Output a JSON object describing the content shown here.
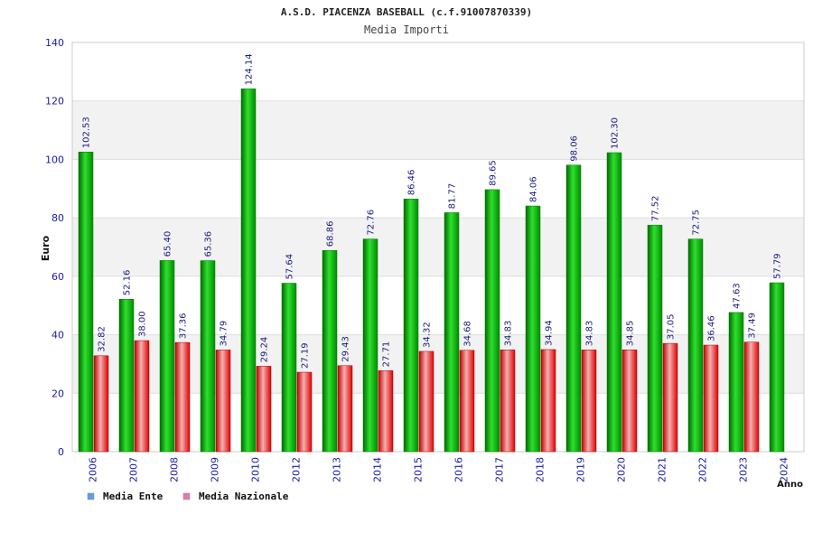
{
  "chart_data": {
    "type": "bar",
    "title": "A.S.D. PIACENZA BASEBALL (c.f.91007870339)",
    "subtitle": "Media Importi",
    "xlabel": "Anno",
    "ylabel": "Euro",
    "ylim": [
      0,
      140
    ],
    "yticks": [
      "0",
      "20",
      "40",
      "60",
      "80",
      "100",
      "120",
      "140"
    ],
    "categories": [
      "2006",
      "2007",
      "2008",
      "2009",
      "2010",
      "2012",
      "2013",
      "2014",
      "2015",
      "2016",
      "2017",
      "2018",
      "2019",
      "2020",
      "2021",
      "2022",
      "2023",
      "2024"
    ],
    "series": [
      {
        "name": "Media Ente",
        "color": "#00c000",
        "legend_color": "#5aa0e8",
        "values": [
          102.53,
          52.16,
          65.4,
          65.36,
          124.14,
          57.64,
          68.86,
          72.76,
          86.46,
          81.77,
          89.65,
          84.06,
          98.06,
          102.3,
          77.52,
          72.75,
          47.63,
          57.79
        ],
        "labels": [
          "102.53",
          "52.16",
          "65.40",
          "65.36",
          "124.14",
          "57.64",
          "68.86",
          "72.76",
          "86.46",
          "81.77",
          "89.65",
          "84.06",
          "98.06",
          "102.30",
          "77.52",
          "72.75",
          "47.63",
          "57.79"
        ]
      },
      {
        "name": "Media Nazionale",
        "color": "#e00000",
        "legend_color": "#e07ab0",
        "values": [
          32.82,
          38.0,
          37.36,
          34.79,
          29.24,
          27.19,
          29.43,
          27.71,
          34.32,
          34.68,
          34.83,
          34.94,
          34.83,
          34.85,
          37.05,
          36.46,
          37.49,
          null
        ],
        "labels": [
          "32.82",
          "38.00",
          "37.36",
          "34.79",
          "29.24",
          "27.19",
          "29.43",
          "27.71",
          "34.32",
          "34.68",
          "34.83",
          "34.94",
          "34.83",
          "34.85",
          "37.05",
          "36.46",
          "37.49",
          ""
        ]
      }
    ]
  }
}
